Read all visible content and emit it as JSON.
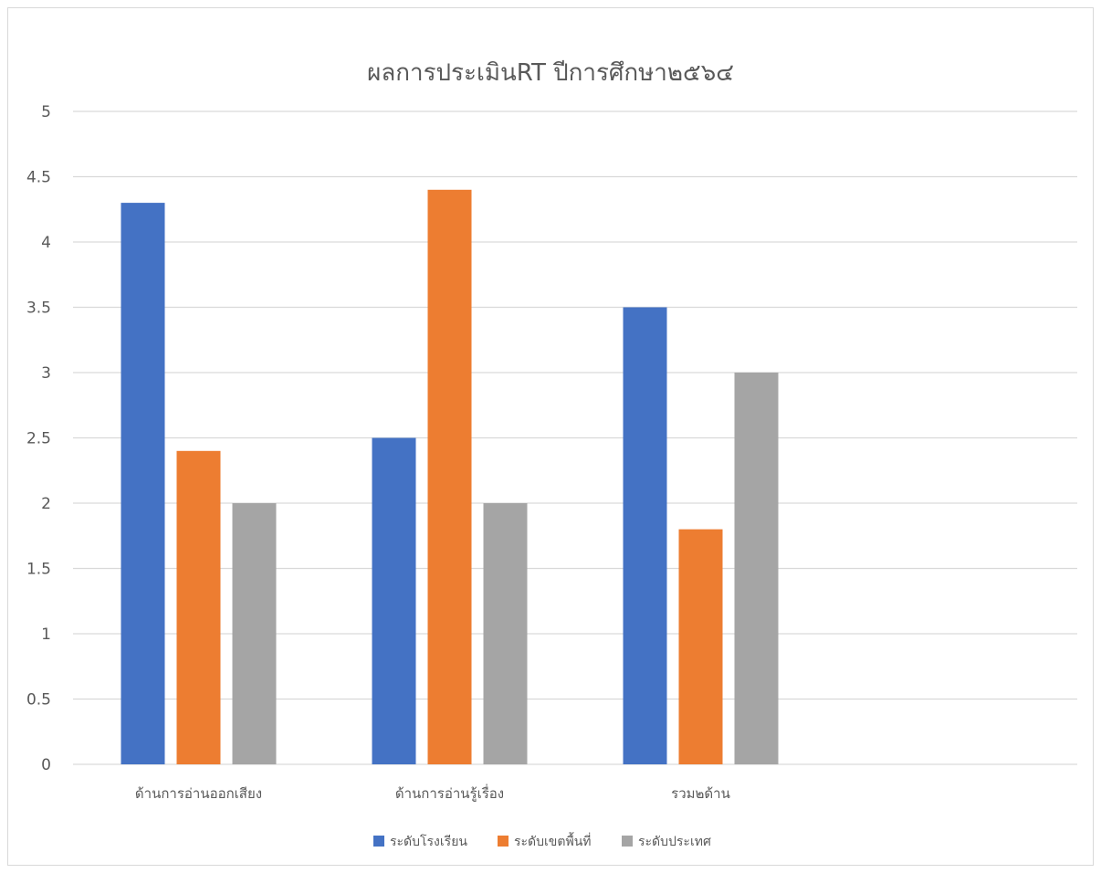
{
  "chart_data": {
    "type": "bar",
    "title": "ผลการประเมินRT ปีการศึกษา๒๕๖๔",
    "xlabel": "",
    "ylabel": "",
    "ylim": [
      0,
      5
    ],
    "yticks": [
      "0",
      "0.5",
      "1",
      "1.5",
      "2",
      "2.5",
      "3",
      "3.5",
      "4",
      "4.5",
      "5"
    ],
    "categories": [
      "ด้านการอ่านออกเสียง",
      "ด้านการอ่านรู้เรื่อง",
      "รวม๒ด้าน",
      ""
    ],
    "series": [
      {
        "name": "ระดับโรงเรียน",
        "color": "#4472C4",
        "values": [
          4.3,
          2.5,
          3.5,
          null
        ]
      },
      {
        "name": "ระดับเขตพื้นที่",
        "color": "#ED7D31",
        "values": [
          2.4,
          4.4,
          1.8,
          null
        ]
      },
      {
        "name": "ระดับประเทศ",
        "color": "#A5A5A5",
        "values": [
          2.0,
          2.0,
          3.0,
          null
        ]
      }
    ],
    "grid": true,
    "legend": "bottom"
  }
}
